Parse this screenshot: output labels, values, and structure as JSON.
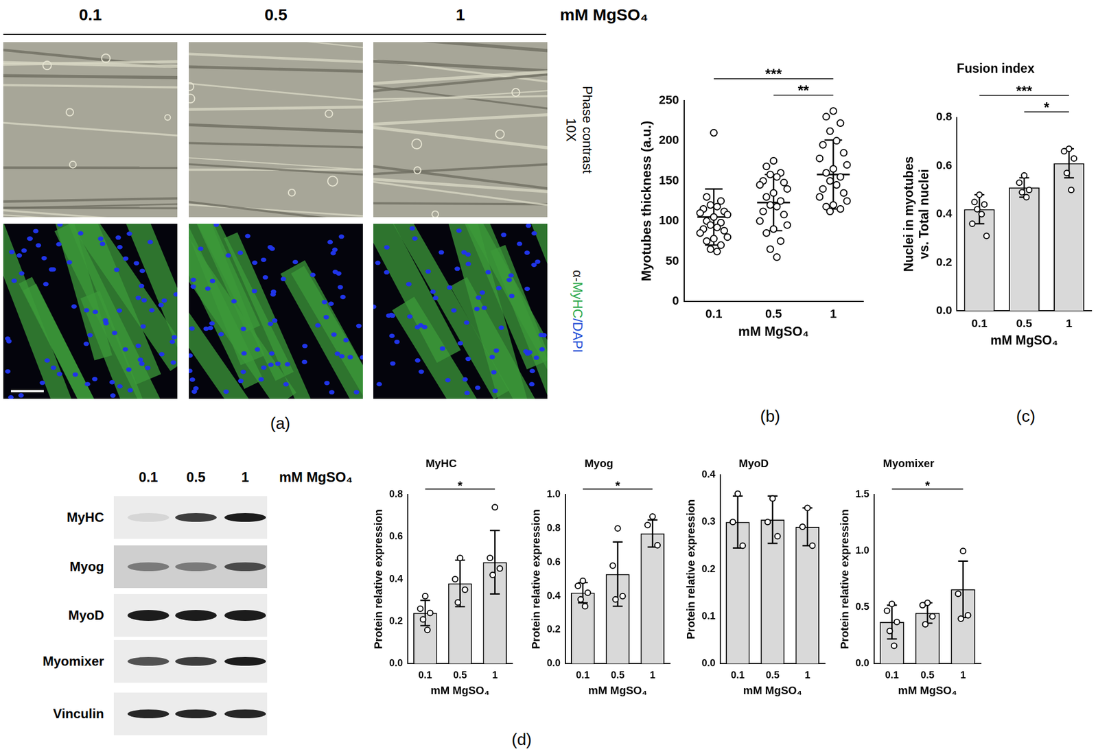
{
  "panel_labels": [
    "(a)",
    "(b)",
    "(c)",
    "(d)"
  ],
  "panel_a": {
    "concentrations": [
      "0.1",
      "0.5",
      "1"
    ],
    "unit": "mM MgSO₄",
    "row_1_label": [
      "Phase contrast",
      "10X"
    ],
    "row_2_label": [
      {
        "text": "α-",
        "color": "#222222"
      },
      {
        "text": "MyHC",
        "color": "#2aa84a"
      },
      {
        "text": "/DAPI",
        "color": "#1f4fd6"
      }
    ]
  },
  "panel_d_blot": {
    "lanes": [
      "0.1",
      "0.5",
      "1"
    ],
    "unit": "mM MgSO₄",
    "rows": [
      "MyHC",
      "Myog",
      "MyoD",
      "Myomixer",
      "Vinculin"
    ]
  },
  "chart_data": [
    {
      "type": "scatter",
      "x_label": "mM MgSO₄",
      "y_label": "Myotubes thickness (a.u.)",
      "categories": [
        "0.1",
        "0.5",
        "1"
      ],
      "values": [
        105,
        123,
        158
      ],
      "errors": [
        35,
        35,
        43
      ],
      "points": [
        [
          210,
          130,
          125,
          120,
          118,
          115,
          112,
          110,
          108,
          105,
          100,
          98,
          95,
          92,
          90,
          88,
          85,
          80,
          78,
          75,
          70,
          65,
          62
        ],
        [
          175,
          168,
          160,
          158,
          155,
          150,
          148,
          145,
          140,
          135,
          130,
          125,
          120,
          118,
          112,
          108,
          100,
          95,
          90,
          85,
          75,
          65,
          55
        ],
        [
          237,
          230,
          222,
          212,
          200,
          195,
          185,
          178,
          170,
          165,
          160,
          155,
          150,
          145,
          140,
          135,
          130,
          125,
          120,
          118,
          115,
          112
        ]
      ],
      "annotations": [
        {
          "from": "0.1",
          "to": "1",
          "text": "***"
        },
        {
          "from": "0.5",
          "to": "1",
          "text": "**"
        }
      ],
      "color": "#000000",
      "ylim": [
        0,
        250
      ],
      "yticks": [
        0,
        50,
        100,
        150,
        200,
        250
      ],
      "grid": false
    },
    {
      "type": "bar",
      "title": "Fusion index",
      "x_label": "mM MgSO₄",
      "y_label": [
        "Nuclei in myotubes",
        "vs. Total nuclei"
      ],
      "categories": [
        "0.1",
        "0.5",
        "1"
      ],
      "values": [
        0.42,
        0.51,
        0.61
      ],
      "errors": [
        0.06,
        0.04,
        0.06
      ],
      "points": [
        [
          0.48,
          0.45,
          0.44,
          0.42,
          0.4,
          0.36,
          0.31
        ],
        [
          0.56,
          0.53,
          0.5,
          0.49,
          0.47
        ],
        [
          0.67,
          0.66,
          0.63,
          0.57,
          0.5
        ]
      ],
      "annotations": [
        {
          "from": "0.1",
          "to": "1",
          "text": "***"
        },
        {
          "from": "0.5",
          "to": "1",
          "text": "*"
        }
      ],
      "color": "#d9d9d9",
      "ylim": [
        0,
        0.8
      ],
      "yticks": [
        {
          "value": 0,
          "label": "0.0"
        },
        0.2,
        0.4,
        0.6,
        0.8
      ],
      "grid": false
    },
    {
      "type": "bar",
      "title": "MyHC",
      "x_label": "mM MgSO₄",
      "y_label": "Protein relative expression",
      "categories": [
        "0.1",
        "0.5",
        "1"
      ],
      "values": [
        0.24,
        0.38,
        0.48
      ],
      "errors": [
        0.06,
        0.11,
        0.15
      ],
      "points": [
        [
          0.32,
          0.26,
          0.24,
          0.21,
          0.16
        ],
        [
          0.5,
          0.4,
          0.35,
          0.29
        ],
        [
          0.74,
          0.5,
          0.45,
          0.42
        ]
      ],
      "annotations": [
        {
          "from": "0.1",
          "to": "1",
          "text": "*"
        }
      ],
      "color": "#d9d9d9",
      "ylim": [
        0,
        0.8
      ],
      "yticks": [
        {
          "value": 0,
          "label": "0.0"
        },
        0.2,
        0.4,
        0.6,
        0.8
      ],
      "grid": false
    },
    {
      "type": "bar",
      "title": "Myog",
      "x_label": "mM MgSO₄",
      "y_label": "Protein relative expression",
      "categories": [
        "0.1",
        "0.5",
        "1"
      ],
      "values": [
        0.42,
        0.53,
        0.77
      ],
      "errors": [
        0.06,
        0.19,
        0.08
      ],
      "points": [
        [
          0.49,
          0.46,
          0.42,
          0.38,
          0.34
        ],
        [
          0.8,
          0.58,
          0.4,
          0.38
        ],
        [
          0.87,
          0.82,
          0.7
        ]
      ],
      "annotations": [
        {
          "from": "0.1",
          "to": "1",
          "text": "*"
        }
      ],
      "color": "#d9d9d9",
      "ylim": [
        0,
        1.0
      ],
      "yticks": [
        {
          "value": 0,
          "label": "0.0"
        },
        0.2,
        0.4,
        0.6,
        0.8,
        {
          "value": 1,
          "label": "1.0"
        }
      ],
      "grid": false
    },
    {
      "type": "bar",
      "title": "MyoD",
      "x_label": "mM MgSO₄",
      "y_label": "Protein relative expression",
      "categories": [
        "0.1",
        "0.5",
        "1"
      ],
      "values": [
        0.3,
        0.305,
        0.29
      ],
      "errors": [
        0.055,
        0.05,
        0.04
      ],
      "points": [
        [
          0.36,
          0.3,
          0.25
        ],
        [
          0.35,
          0.3,
          0.27
        ],
        [
          0.33,
          0.29,
          0.25
        ]
      ],
      "annotations": [],
      "color": "#d9d9d9",
      "ylim": [
        0,
        0.4
      ],
      "yticks": [
        {
          "value": 0,
          "label": "0.0"
        },
        0.1,
        0.2,
        0.3,
        0.4
      ],
      "grid": false
    },
    {
      "type": "bar",
      "title": "Myomixer",
      "x_label": "mM MgSO₄",
      "y_label": "Protein relative expression",
      "categories": [
        "0.1",
        "0.5",
        "1"
      ],
      "values": [
        0.37,
        0.45,
        0.66
      ],
      "errors": [
        0.15,
        0.09,
        0.25
      ],
      "points": [
        [
          0.53,
          0.47,
          0.37,
          0.29,
          0.16
        ],
        [
          0.54,
          0.52,
          0.42,
          0.35
        ],
        [
          1.0,
          0.62,
          0.43,
          0.4
        ]
      ],
      "annotations": [
        {
          "from": "0.1",
          "to": "1",
          "text": "*"
        }
      ],
      "color": "#d9d9d9",
      "ylim": [
        0,
        1.5
      ],
      "yticks": [
        {
          "value": 0,
          "label": "0.0"
        },
        0.5,
        {
          "value": 1,
          "label": "1.0"
        },
        1.5
      ],
      "grid": false
    }
  ]
}
